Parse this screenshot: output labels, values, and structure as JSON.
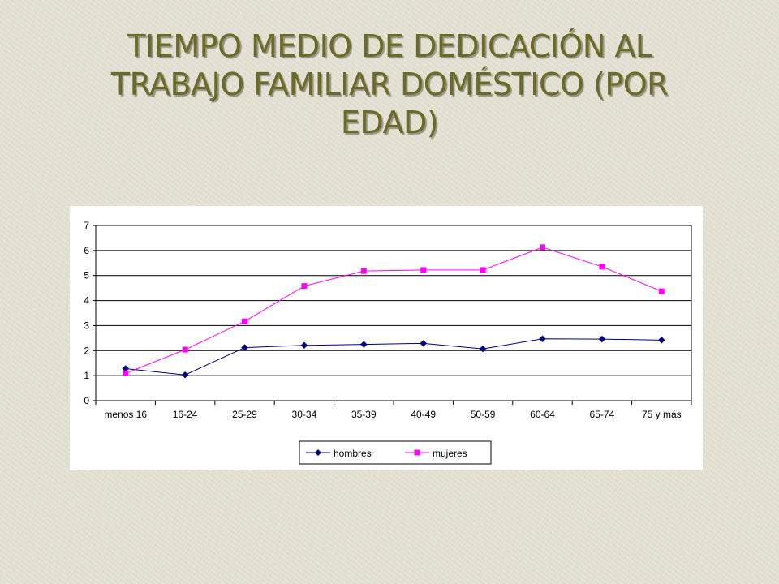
{
  "slide": {
    "title_line1": "TIEMPO MEDIO DE DEDICACIÓN AL",
    "title_line2": "TRABAJO FAMILIAR DOMÉSTICO (POR",
    "title_line3": "EDAD)"
  },
  "colors": {
    "slide_background": "#e6e3d4",
    "title": "#6b6b25",
    "hombres": "#000080",
    "mujeres": "#ff00ff"
  },
  "chart_data": {
    "type": "line",
    "title": "",
    "xlabel": "",
    "ylabel": "",
    "categories": [
      "menos 16",
      "16-24",
      "25-29",
      "30-34",
      "35-39",
      "40-49",
      "50-59",
      "60-64",
      "65-74",
      "75 y más"
    ],
    "ylim": [
      0,
      7
    ],
    "yticks": [
      0,
      1,
      2,
      3,
      4,
      5,
      6,
      7
    ],
    "grid": true,
    "legend_position": "bottom",
    "series": [
      {
        "name": "hombres",
        "marker": "diamond",
        "color": "#000080",
        "values": [
          1.28,
          1.03,
          2.12,
          2.21,
          2.25,
          2.29,
          2.07,
          2.47,
          2.46,
          2.42
        ]
      },
      {
        "name": "mujeres",
        "marker": "square",
        "color": "#ff00ff",
        "values": [
          1.09,
          2.04,
          3.17,
          4.58,
          5.18,
          5.22,
          5.22,
          6.13,
          5.35,
          4.37
        ]
      }
    ]
  }
}
